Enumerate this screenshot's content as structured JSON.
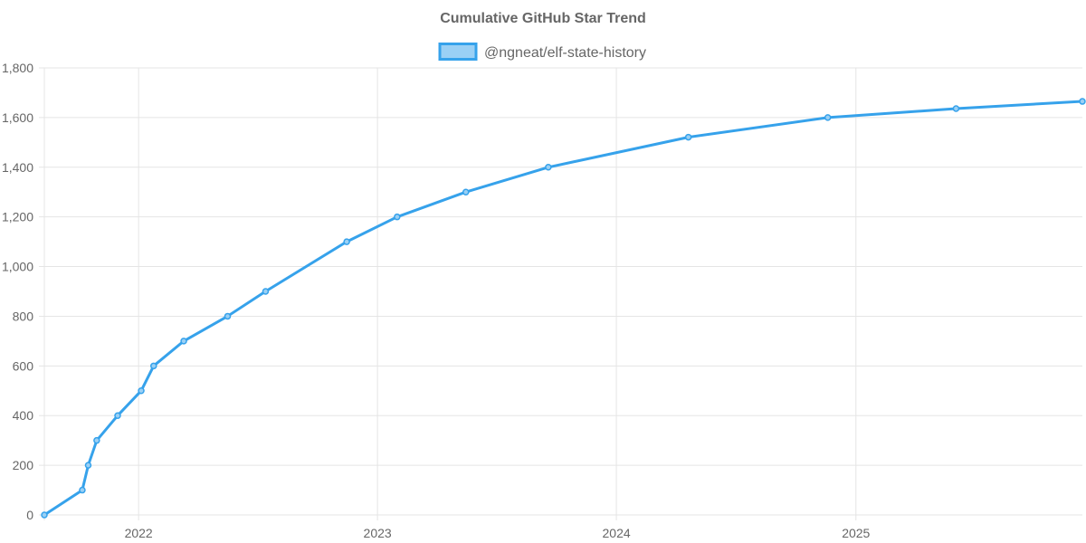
{
  "chart_data": {
    "type": "line",
    "title": "Cumulative GitHub Star Trend",
    "legend_position": "top",
    "grid": true,
    "series": [
      {
        "name": "@ngneat/elf-state-history",
        "color": "#36a2eb",
        "fill_color": "#9ad0f5",
        "points": [
          {
            "x": "2021-08-10",
            "y": 0
          },
          {
            "x": "2021-10-07",
            "y": 100
          },
          {
            "x": "2021-10-16",
            "y": 200
          },
          {
            "x": "2021-10-29",
            "y": 300
          },
          {
            "x": "2021-11-30",
            "y": 400
          },
          {
            "x": "2022-01-05",
            "y": 500
          },
          {
            "x": "2022-01-24",
            "y": 600
          },
          {
            "x": "2022-03-11",
            "y": 700
          },
          {
            "x": "2022-05-17",
            "y": 800
          },
          {
            "x": "2022-07-14",
            "y": 900
          },
          {
            "x": "2022-11-15",
            "y": 1100
          },
          {
            "x": "2023-01-31",
            "y": 1200
          },
          {
            "x": "2023-05-16",
            "y": 1300
          },
          {
            "x": "2023-09-19",
            "y": 1400
          },
          {
            "x": "2024-04-20",
            "y": 1521
          },
          {
            "x": "2024-11-19",
            "y": 1600
          },
          {
            "x": "2025-06-03",
            "y": 1636
          },
          {
            "x": "2025-12-13",
            "y": 1665
          }
        ]
      }
    ],
    "x_axis": {
      "type": "time",
      "ticks": [
        "2022",
        "2023",
        "2024",
        "2025"
      ],
      "range": [
        "2021-08-10",
        "2025-12-13"
      ]
    },
    "y_axis": {
      "range": [
        0,
        1800
      ],
      "ticks": [
        "0",
        "200",
        "400",
        "600",
        "800",
        "1,000",
        "1,200",
        "1,400",
        "1,600",
        "1,800"
      ]
    }
  }
}
